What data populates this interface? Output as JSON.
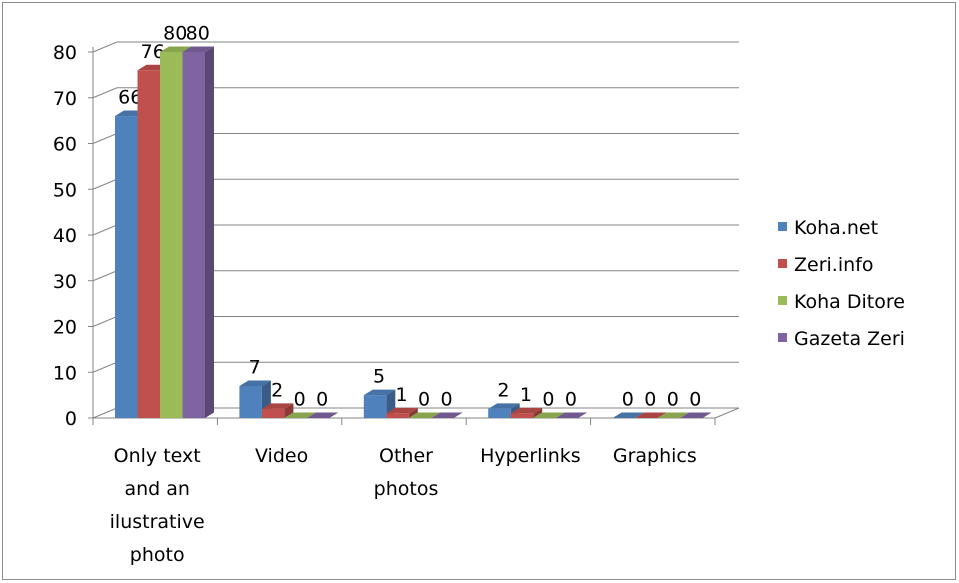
{
  "chart_data": {
    "type": "bar",
    "title": "",
    "xlabel": "",
    "ylabel": "",
    "ylim": [
      0,
      80
    ],
    "yticks": [
      0,
      10,
      20,
      30,
      40,
      50,
      60,
      70,
      80
    ],
    "grid": true,
    "legend_position": "right",
    "categories": [
      [
        "Only text",
        "and an",
        "ilustrative",
        "photo"
      ],
      [
        "Video"
      ],
      [
        "Other",
        "photos"
      ],
      [
        "Hyperlinks"
      ],
      [
        "Graphics"
      ]
    ],
    "series": [
      {
        "name": "Koha.net",
        "color": "#4F81BD",
        "values": [
          66,
          7,
          5,
          2,
          0
        ]
      },
      {
        "name": "Zeri.info",
        "color": "#C0504D",
        "values": [
          76,
          2,
          1,
          1,
          0
        ]
      },
      {
        "name": "Koha Ditore",
        "color": "#9BBB59",
        "values": [
          80,
          0,
          0,
          0,
          0
        ]
      },
      {
        "name": "Gazeta Zeri",
        "color": "#8064A2",
        "values": [
          80,
          0,
          0,
          0,
          0
        ]
      }
    ]
  }
}
